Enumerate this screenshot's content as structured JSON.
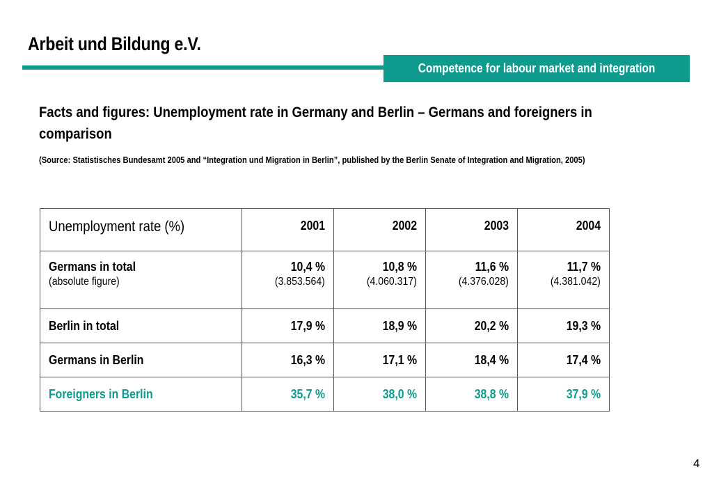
{
  "header": {
    "org_title": "Arbeit und Bildung e.V.",
    "tagline": "Competence for labour market and integration"
  },
  "heading": "Facts and figures: Unemployment rate in Germany and Berlin – Germans and foreigners in comparison",
  "source": "(Source: Statistisches Bundesamt 2005 and “Integration und Migration in Berlin”, published by the Berlin Senate of Integration and Migration, 2005)",
  "table": {
    "corner": "Unemployment rate (%)",
    "years": [
      "2001",
      "2002",
      "2003",
      "2004"
    ],
    "rows": [
      {
        "label": "Germans in total",
        "sublabel": "(absolute figure)",
        "values": [
          "10,4 %",
          "10,8 %",
          "11,6 %",
          "11,7 %"
        ],
        "subvalues": [
          "(3.853.564)",
          "(4.060.317)",
          "(4.376.028)",
          "(4.381.042)"
        ]
      },
      {
        "label": "Berlin in total",
        "values": [
          "17,9 %",
          "18,9 %",
          "20,2 %",
          "19,3 %"
        ]
      },
      {
        "label": "Germans in Berlin",
        "values": [
          "16,3 %",
          "17,1 %",
          "18,4 %",
          "17,4 %"
        ]
      },
      {
        "label": "Foreigners in Berlin",
        "values": [
          "35,7 %",
          "38,0 %",
          "38,8 %",
          "37,9 %"
        ]
      }
    ]
  },
  "page_number": "4",
  "colors": {
    "accent": "#0f9a8e"
  }
}
